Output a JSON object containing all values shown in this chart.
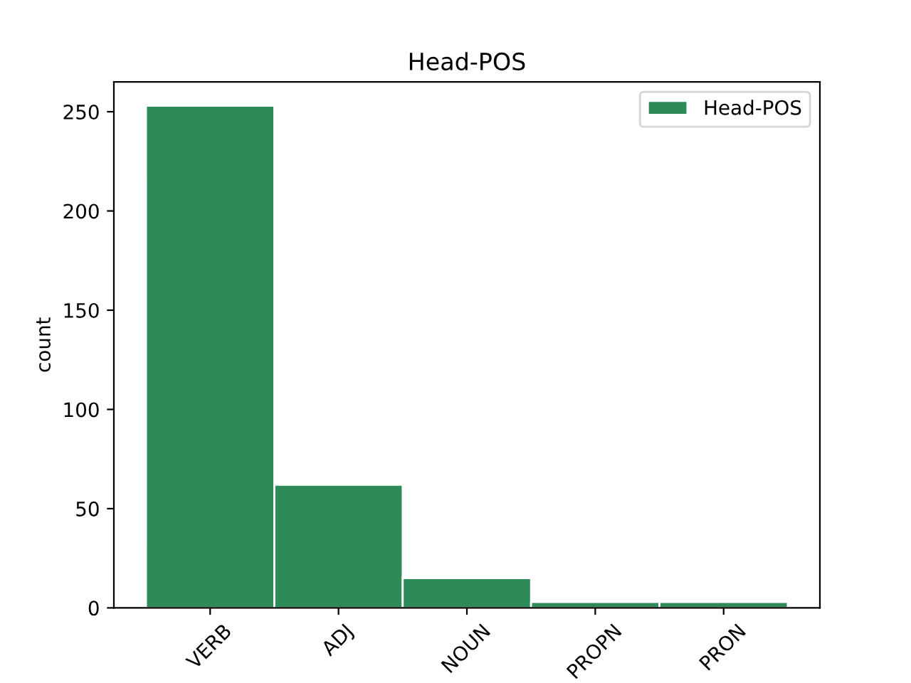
{
  "chart_data": {
    "type": "bar",
    "title": "Head-POS",
    "ylabel": "count",
    "categories": [
      "VERB",
      "ADJ",
      "NOUN",
      "PROPN",
      "PRON"
    ],
    "series": [
      {
        "name": "Head-POS",
        "color": "#2e8b57",
        "values": [
          253,
          62,
          15,
          3,
          3
        ]
      }
    ],
    "ylim": [
      0,
      265
    ],
    "yticks": [
      0,
      50,
      100,
      150,
      200,
      250
    ],
    "legend": "top right",
    "grid": false
  }
}
